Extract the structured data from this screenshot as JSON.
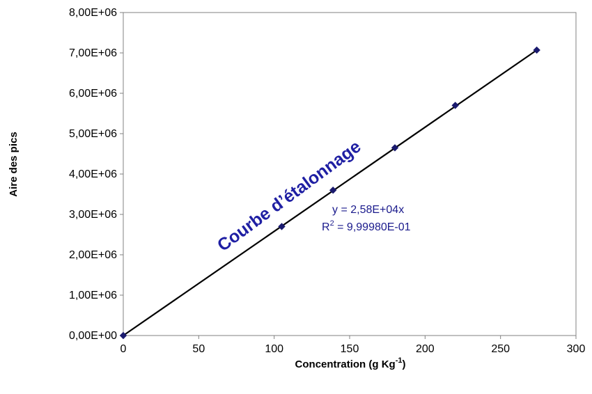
{
  "chart_data": {
    "type": "scatter",
    "xlabel": "Concentration (g Kg",
    "xlabel_sup": "-1",
    "xlabel_close": ")",
    "ylabel": "Aire des pics",
    "xlim": [
      0,
      300
    ],
    "ylim": [
      0,
      8000000
    ],
    "x_ticks": [
      0,
      50,
      100,
      150,
      200,
      250,
      300
    ],
    "x_tick_labels": [
      "0",
      "50",
      "100",
      "150",
      "200",
      "250",
      "300"
    ],
    "y_ticks": [
      0,
      1000000,
      2000000,
      3000000,
      4000000,
      5000000,
      6000000,
      7000000,
      8000000
    ],
    "y_tick_labels": [
      "0,00E+00",
      "1,00E+06",
      "2,00E+06",
      "3,00E+06",
      "4,00E+06",
      "5,00E+06",
      "6,00E+06",
      "7,00E+06",
      "8,00E+06"
    ],
    "grid": false,
    "legend": "none",
    "series": [
      {
        "x": [
          0,
          105,
          139,
          180,
          220,
          274
        ],
        "y": [
          0,
          2700000,
          3600000,
          4650000,
          5700000,
          7070000
        ],
        "marker": "diamond",
        "color": "#1a1a6e"
      }
    ],
    "trendline": {
      "slope": 25800,
      "intercept": 0,
      "x_range": [
        0,
        274
      ],
      "color": "#000000"
    },
    "annotations": {
      "curve_label": "Courbe d’étalonnage",
      "equation": "y = 2,58E+04x",
      "r2_prefix": "R",
      "r2_sup": "2",
      "r2_value": " = 9,99980E-01",
      "text_color": "#1a1a8c",
      "curve_label_color": "#1f1fa3"
    }
  }
}
